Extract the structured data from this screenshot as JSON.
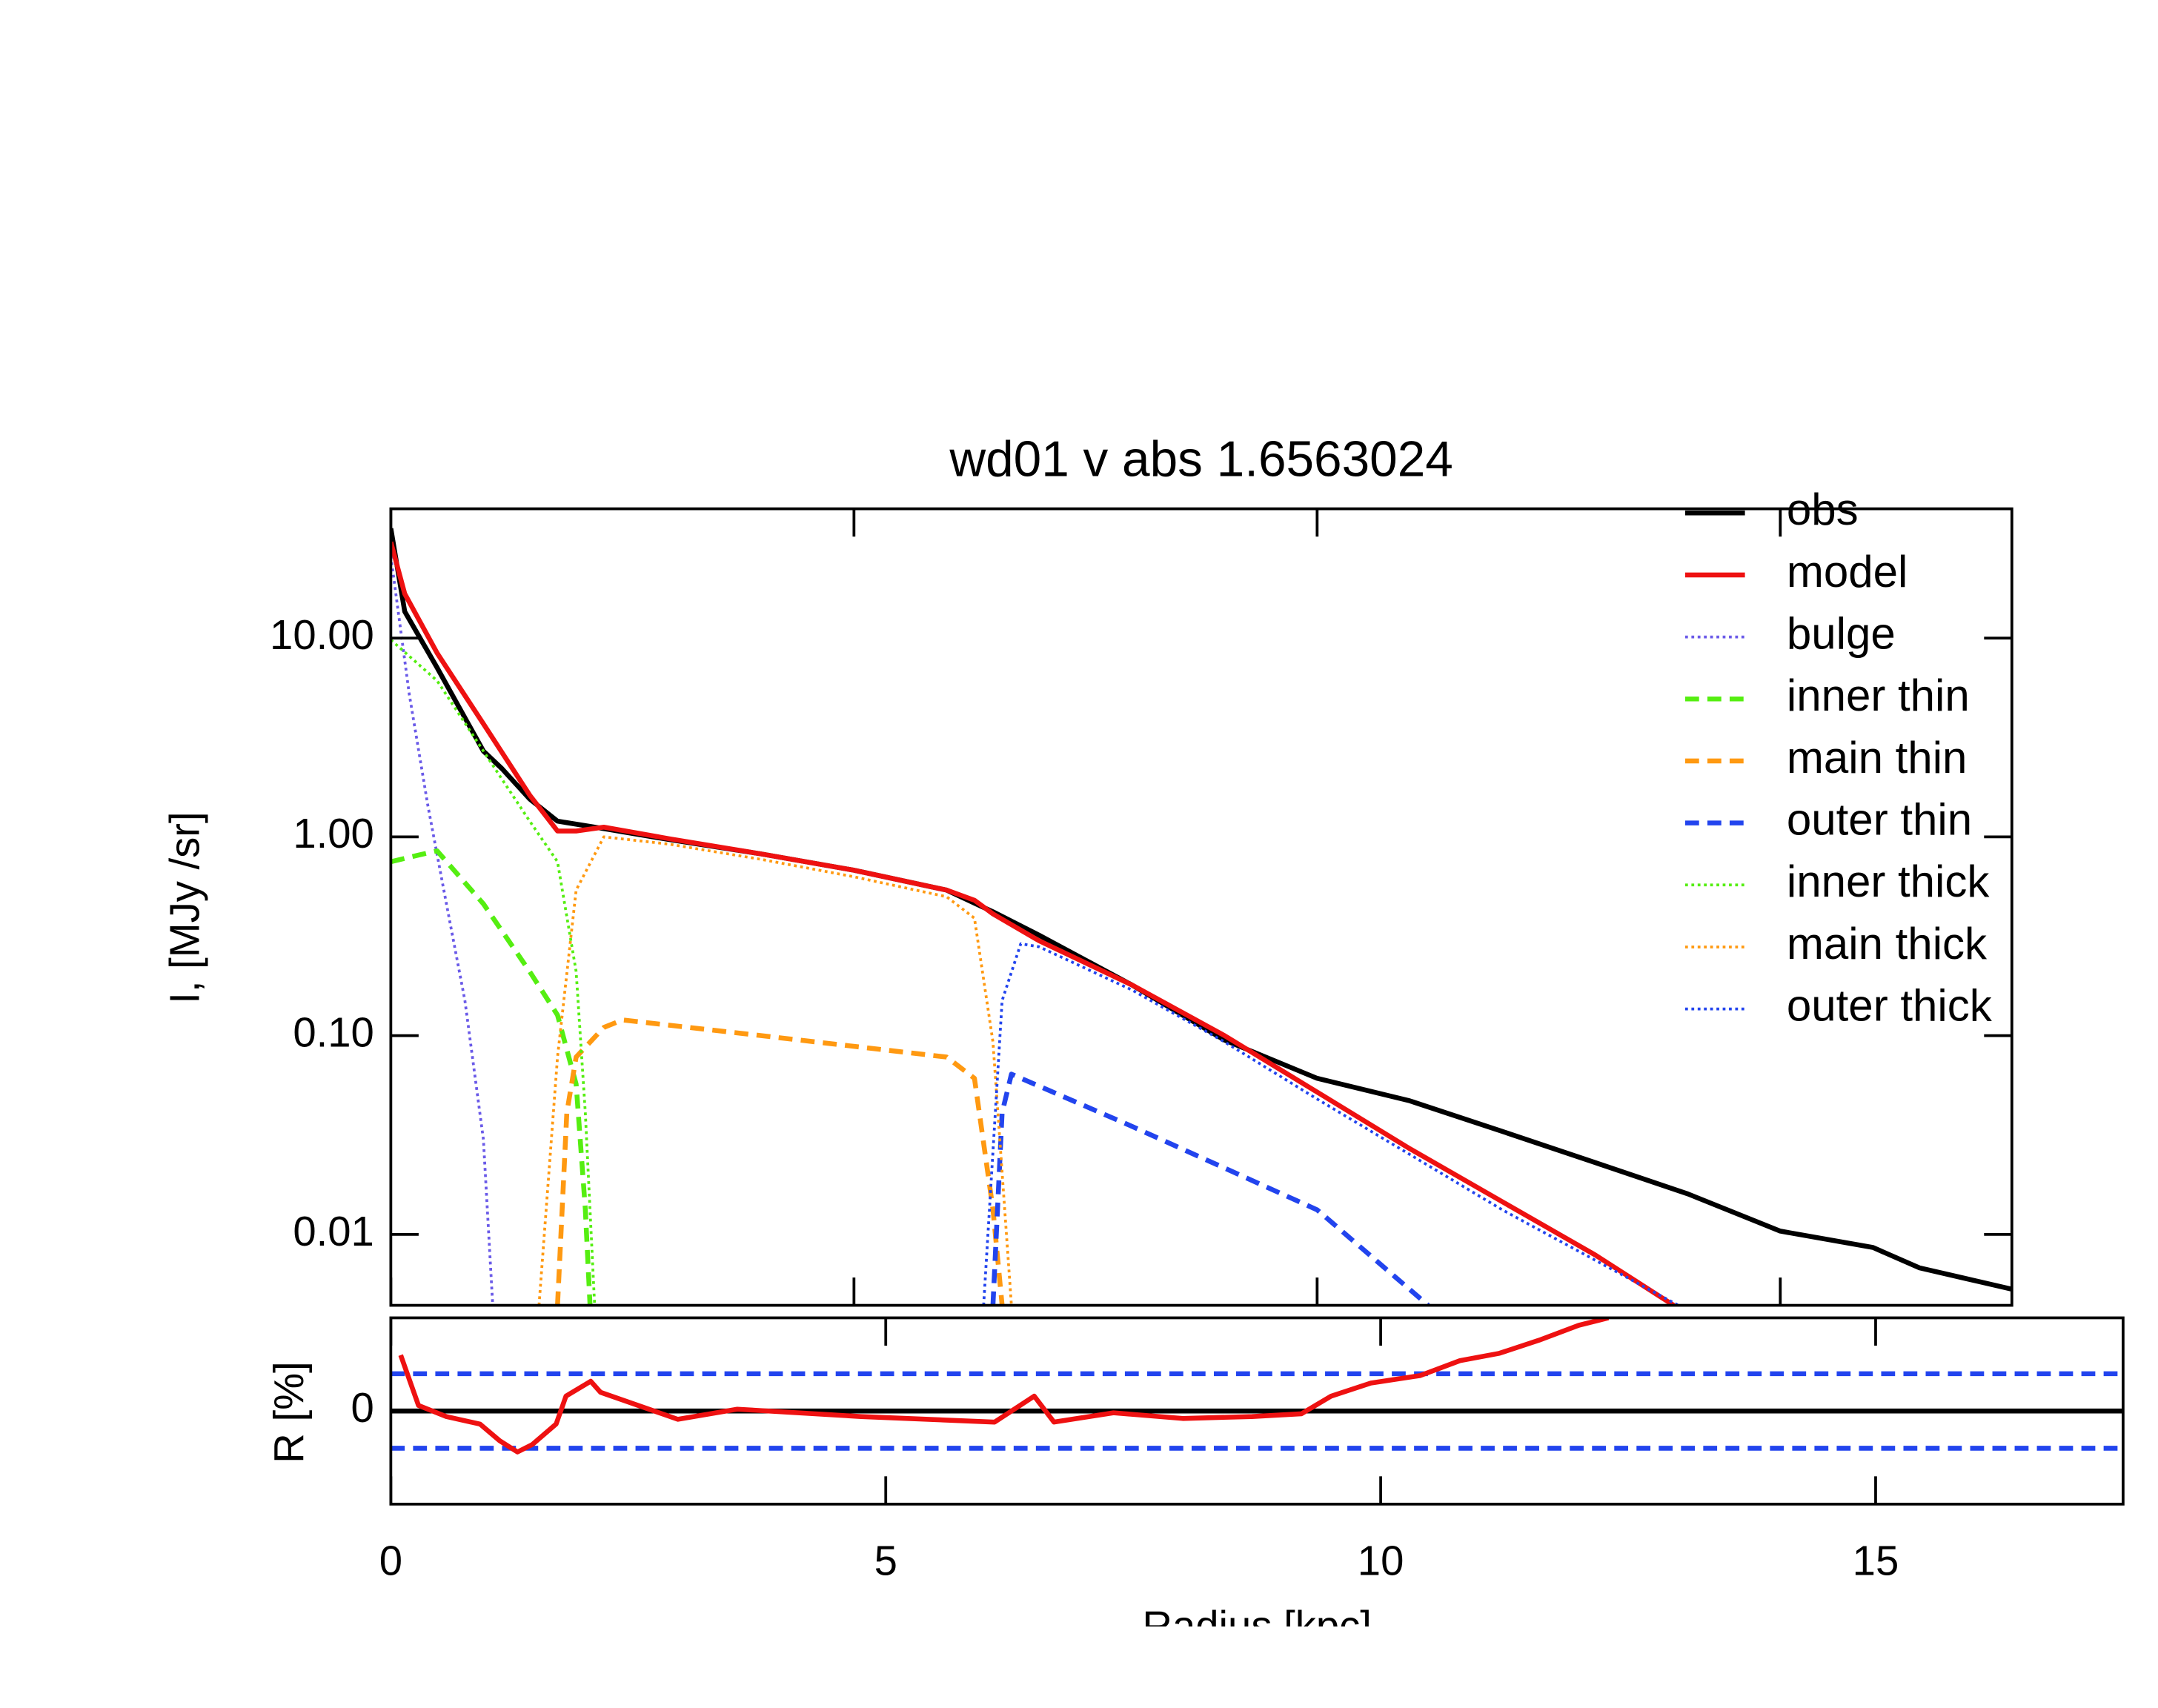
{
  "chart_data": [
    {
      "type": "line",
      "title": "wd01 v abs 1.6563024",
      "y_label": "I, [MJy /sr]",
      "log_y": true,
      "xlim": [
        0,
        17.5
      ],
      "xticks": [
        0,
        5,
        10,
        15
      ],
      "ylim": [
        0.0044,
        44.7
      ],
      "yticks": [
        {
          "value": 10,
          "label": "10.00"
        },
        {
          "value": 1,
          "label": "1.00"
        },
        {
          "value": 0.1,
          "label": "0.10"
        },
        {
          "value": 0.01,
          "label": "0.01"
        }
      ],
      "legend": "top-right",
      "series": [
        {
          "name": "obs",
          "color": "#000000",
          "style": "solid",
          "x": [
            0,
            0.15,
            0.5,
            1.0,
            1.2,
            1.5,
            1.8,
            2.3,
            3.0,
            4.0,
            5.0,
            6.0,
            6.5,
            7.0,
            8.0,
            9.0,
            10.0,
            11.0,
            12.0,
            13.0,
            14.0,
            15.0,
            16.0,
            16.5,
            17.0,
            17.5
          ],
          "values": [
            35.6,
            13.6,
            7.1,
            2.7,
            2.2,
            1.55,
            1.2,
            1.1,
            0.97,
            0.82,
            0.68,
            0.54,
            0.42,
            0.32,
            0.18,
            0.095,
            0.061,
            0.047,
            0.033,
            0.023,
            0.016,
            0.0104,
            0.0086,
            0.0068,
            0.006,
            0.0053
          ]
        },
        {
          "name": "model",
          "color": "#ee1111",
          "style": "solid",
          "x": [
            0,
            0.15,
            0.5,
            1.0,
            1.5,
            1.8,
            2.0,
            2.3,
            3,
            4,
            5,
            6,
            6.3,
            6.5,
            7,
            8,
            9,
            10,
            11,
            12,
            13,
            13.85
          ],
          "values": [
            30.4,
            16.7,
            8.4,
            3.7,
            1.62,
            1.07,
            1.07,
            1.12,
            0.98,
            0.82,
            0.68,
            0.54,
            0.48,
            0.41,
            0.3,
            0.18,
            0.1,
            0.052,
            0.027,
            0.0146,
            0.0079,
            0.0044
          ]
        },
        {
          "name": "bulge",
          "color": "#6a5ae8",
          "style": "dotted",
          "x": [
            0,
            0.2,
            0.4,
            0.6,
            0.8,
            1.0,
            1.1
          ],
          "values": [
            25.8,
            5.2,
            1.43,
            0.46,
            0.15,
            0.03,
            0.0044
          ]
        },
        {
          "name": "inner thin",
          "color": "#55ee11",
          "style": "dashed",
          "x": [
            0,
            0.3,
            0.5,
            1.0,
            1.5,
            1.8,
            2.0,
            2.1,
            2.15
          ],
          "values": [
            0.75,
            0.81,
            0.85,
            0.46,
            0.21,
            0.127,
            0.057,
            0.0134,
            0.0044
          ]
        },
        {
          "name": "main thin",
          "color": "#ff9911",
          "style": "dashed",
          "x": [
            1.8,
            1.9,
            2.0,
            2.3,
            2.5,
            4,
            6,
            6.3,
            6.5,
            6.6
          ],
          "values": [
            0.0044,
            0.041,
            0.078,
            0.11,
            0.12,
            0.1,
            0.078,
            0.061,
            0.0134,
            0.0044
          ]
        },
        {
          "name": "outer thin",
          "color": "#2244ee",
          "style": "dashed",
          "x": [
            6.5,
            6.6,
            6.7,
            8,
            10,
            11.2
          ],
          "values": [
            0.0044,
            0.041,
            0.064,
            0.035,
            0.0133,
            0.0044
          ]
        },
        {
          "name": "inner thick",
          "color": "#55ee11",
          "style": "dotted",
          "x": [
            0,
            0.5,
            1.0,
            1.5,
            1.8,
            2.0,
            2.1,
            2.2
          ],
          "values": [
            9.8,
            6.1,
            2.7,
            1.2,
            0.75,
            0.21,
            0.041,
            0.0044
          ]
        },
        {
          "name": "main thick",
          "color": "#ff9911",
          "style": "dotted",
          "x": [
            1.6,
            1.8,
            2.0,
            2.3,
            3,
            4,
            5,
            6,
            6.3,
            6.5,
            6.7
          ],
          "values": [
            0.0044,
            0.078,
            0.54,
            1.0,
            0.92,
            0.77,
            0.63,
            0.5,
            0.39,
            0.093,
            0.0044
          ]
        },
        {
          "name": "outer thick",
          "color": "#2244ee",
          "style": "dotted",
          "x": [
            6.4,
            6.6,
            6.8,
            7,
            8,
            9,
            10,
            12,
            13.9
          ],
          "values": [
            0.0044,
            0.15,
            0.29,
            0.28,
            0.17,
            0.093,
            0.048,
            0.0133,
            0.0044
          ]
        }
      ]
    },
    {
      "type": "line",
      "x_label": "Radius  [kpc]",
      "y_label": "R [%]",
      "xlim": [
        0,
        17.5
      ],
      "xticks": [
        0,
        5,
        10,
        15
      ],
      "ylim": [
        -5,
        5
      ],
      "yticks": [
        0
      ],
      "reference_lines": [
        {
          "value": 0,
          "color": "#000000",
          "style": "solid"
        },
        {
          "value": 2,
          "color": "#2244ee",
          "style": "dashed"
        },
        {
          "value": -2,
          "color": "#2244ee",
          "style": "dashed"
        }
      ],
      "series": [
        {
          "color": "#ee1111",
          "style": "solid",
          "x": [
            0.1,
            0.28,
            0.56,
            0.9,
            1.1,
            1.28,
            1.43,
            1.67,
            1.77,
            2.02,
            2.12,
            2.9,
            3.5,
            4.75,
            6.1,
            6.5,
            6.7,
            7.3,
            8,
            8.7,
            9.2,
            9.5,
            9.9,
            10.4,
            10.8,
            11.2,
            11.6,
            12.0,
            12.3
          ],
          "values": [
            3.0,
            0.3,
            -0.3,
            -0.7,
            -1.6,
            -2.2,
            -1.8,
            -0.7,
            0.8,
            1.6,
            1.0,
            -0.45,
            0.1,
            -0.3,
            -0.6,
            0.8,
            -0.6,
            -0.1,
            -0.4,
            -0.3,
            -0.15,
            0.8,
            1.5,
            1.9,
            2.7,
            3.1,
            3.8,
            4.6,
            5
          ]
        }
      ]
    }
  ]
}
